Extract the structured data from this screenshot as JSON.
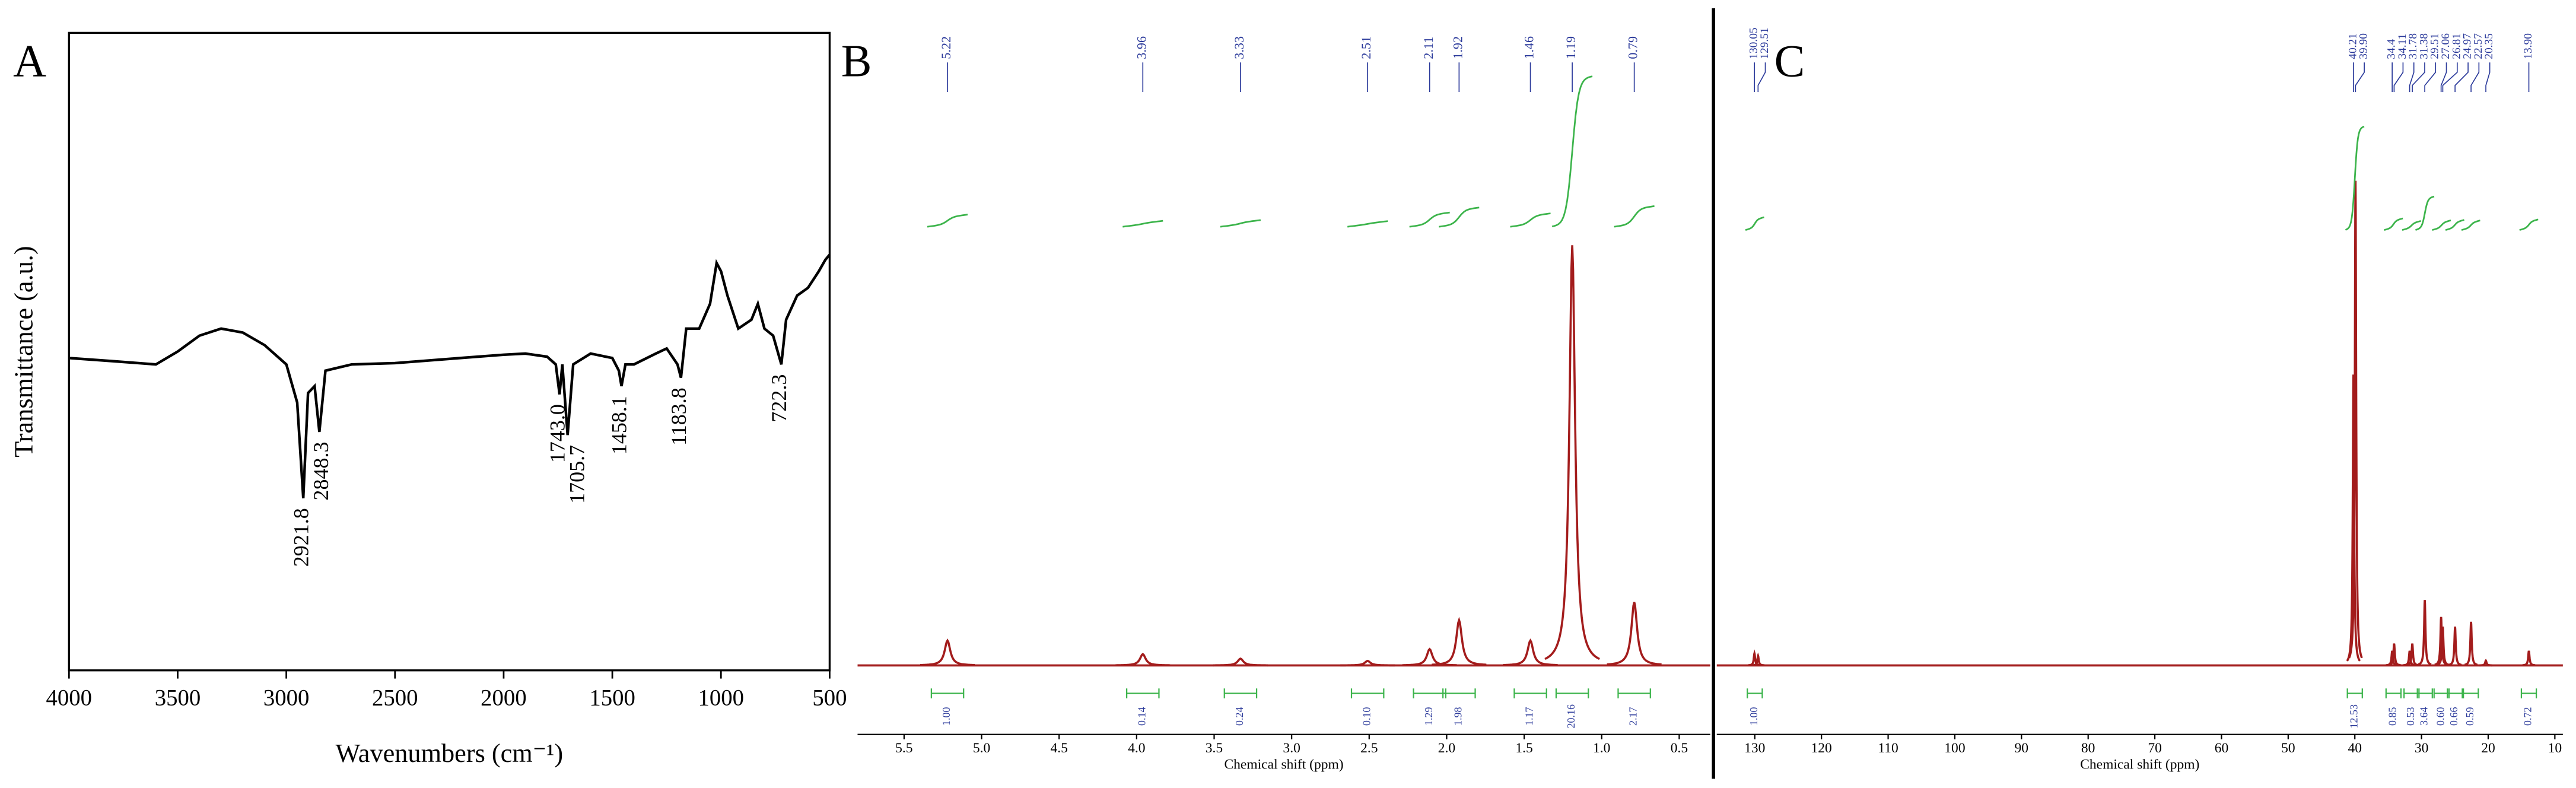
{
  "chart_data": [
    {
      "type": "line",
      "panel": "A",
      "ylabel": "Transmittance (a.u.)",
      "xlabel": "Wavenumbers (cm⁻¹)",
      "xlim": [
        4000,
        500
      ],
      "ylim": [
        0,
        100
      ],
      "xticks": [
        4000,
        3500,
        3000,
        2500,
        2000,
        1500,
        1000,
        500
      ],
      "color": "#000000",
      "x": [
        4000,
        3800,
        3600,
        3500,
        3400,
        3300,
        3200,
        3100,
        3000,
        2950,
        2921.8,
        2900,
        2870,
        2848.3,
        2820,
        2700,
        2500,
        2200,
        2000,
        1900,
        1800,
        1760,
        1743,
        1730,
        1705.7,
        1680,
        1600,
        1500,
        1470,
        1458.1,
        1440,
        1400,
        1300,
        1250,
        1200,
        1183.8,
        1160,
        1100,
        1050,
        1020,
        1000,
        970,
        920,
        860,
        830,
        800,
        760,
        722.3,
        700,
        650,
        600,
        550,
        520,
        500
      ],
      "values": [
        49,
        48.5,
        48,
        50,
        52.5,
        53.6,
        53,
        51,
        48,
        42,
        27,
        43.5,
        44.6,
        37.4,
        47,
        48,
        48.2,
        49,
        49.5,
        49.7,
        49.2,
        48,
        43.3,
        48,
        36.9,
        48,
        49.7,
        49,
        47,
        44.6,
        48,
        48,
        49.7,
        50.5,
        48,
        45.9,
        53.6,
        53.6,
        57.5,
        63.9,
        62.6,
        58.8,
        53.6,
        55,
        57.5,
        53.6,
        52.5,
        48,
        55,
        58.8,
        60,
        62.6,
        64.4,
        65.2
      ],
      "peaks": [
        {
          "x": 2921.8,
          "label": "2921.8"
        },
        {
          "x": 2848.3,
          "label": "2848.3"
        },
        {
          "x": 1743,
          "label": "1743.0"
        },
        {
          "x": 1705.7,
          "label": "1705.7"
        },
        {
          "x": 1458.1,
          "label": "1458.1"
        },
        {
          "x": 1183.8,
          "label": "1183.8"
        },
        {
          "x": 722.3,
          "label": "722.3"
        }
      ]
    },
    {
      "type": "nmr",
      "panel": "B",
      "xlabel": "Chemical shift (ppm)",
      "xlim": [
        5.8,
        0.3
      ],
      "ylim": [
        0,
        100
      ],
      "xticks": [
        5.5,
        {
          "value": 5,
          "label": "5.0"
        },
        4.5,
        {
          "value": 4,
          "label": "4.0"
        },
        3.5,
        {
          "value": 3,
          "label": "3.0"
        },
        2.5,
        {
          "value": 2,
          "label": "2.0"
        },
        1.5,
        {
          "value": 1,
          "label": "1.0"
        },
        0.5
      ],
      "color": "#a31c1c",
      "integral_color": "#3cb44b",
      "label_color": "#2b3a9b",
      "peaks": [
        {
          "x": 5.22,
          "height": 5.5
        },
        {
          "x": 3.96,
          "height": 2.5
        },
        {
          "x": 3.33,
          "height": 1.5
        },
        {
          "x": 2.51,
          "height": 1
        },
        {
          "x": 2.11,
          "height": 3.6
        },
        {
          "x": 1.92,
          "height": 10
        },
        {
          "x": 1.46,
          "height": 5.5
        },
        {
          "x": 1.19,
          "height": 93
        },
        {
          "x": 0.79,
          "height": 14
        }
      ],
      "integrals": [
        {
          "x": 5.22,
          "value": 1,
          "label": "1.00"
        },
        {
          "x": 3.96,
          "value": 0.14,
          "label": "0.14"
        },
        {
          "x": 3.33,
          "value": 0.24,
          "label": "0.24"
        },
        {
          "x": 2.51,
          "value": 0.1,
          "label": "0.10"
        },
        {
          "x": 2.11,
          "value": 1.29,
          "label": "1.29"
        },
        {
          "x": 1.92,
          "value": 1.98,
          "label": "1.98"
        },
        {
          "x": 1.46,
          "value": 1.17,
          "label": "1.17"
        },
        {
          "x": 1.19,
          "value": 20.16,
          "label": "20.16"
        },
        {
          "x": 0.79,
          "value": 2.17,
          "label": "2.17"
        }
      ]
    },
    {
      "type": "nmr",
      "panel": "C",
      "xlabel": "Chemical shift (ppm)",
      "xlim": [
        135.7,
        8.8
      ],
      "ylim": [
        0,
        100
      ],
      "xticks": [
        130,
        120,
        110,
        100,
        90,
        80,
        70,
        60,
        50,
        40,
        30,
        20,
        10
      ],
      "color": "#a31c1c",
      "integral_color": "#3cb44b",
      "label_color": "#2b3a9b",
      "peaks": [
        {
          "x": 130.05,
          "height": 2.5
        },
        {
          "x": 129.51,
          "height": 2
        },
        {
          "x": 40.21,
          "height": 60
        },
        {
          "x": 39.9,
          "label": "39.90",
          "height": 100
        },
        {
          "x": 34.4,
          "height": 3
        },
        {
          "x": 34.11,
          "height": 4.5
        },
        {
          "x": 31.78,
          "height": 3
        },
        {
          "x": 31.38,
          "height": 4.5
        },
        {
          "x": 29.51,
          "height": 13.5
        },
        {
          "x": 27.06,
          "height": 10
        },
        {
          "x": 26.81,
          "height": 8
        },
        {
          "x": 24.97,
          "height": 8
        },
        {
          "x": 22.57,
          "height": 9
        },
        {
          "x": 20.35,
          "height": 1
        },
        {
          "x": 13.9,
          "label": "13.90",
          "height": 3
        }
      ],
      "integrals": [
        {
          "x": 130,
          "value": 1,
          "label": "1.00"
        },
        {
          "x": 40,
          "value": 12.53,
          "label": "12.53"
        },
        {
          "x": 34.2,
          "value": 0.85,
          "label": "0.85"
        },
        {
          "x": 31.5,
          "value": 0.53,
          "label": "0.53"
        },
        {
          "x": 29.5,
          "value": 3.64,
          "label": "3.64"
        },
        {
          "x": 27,
          "value": 0.6,
          "label": "0.60"
        },
        {
          "x": 25,
          "value": 0.66,
          "label": "0.66"
        },
        {
          "x": 22.6,
          "value": 0.59,
          "label": "0.59"
        },
        {
          "x": 13.9,
          "value": 0.72,
          "label": "0.72"
        }
      ]
    }
  ]
}
